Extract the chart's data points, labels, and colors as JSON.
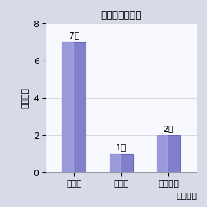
{
  "title_light": "ジャナル",
  "title_bold1": "指",
  "title_light2": "の",
  "title_bold2": "向",
  "title_full": "ジャナル指の向",
  "categories": [
    "着な加",
    "化なし",
    "徐々に少"
  ],
  "values": [
    7,
    1,
    2
  ],
  "labels": [
    "7人",
    "1人",
    "2人"
  ],
  "ylabel": "延べ人数",
  "xlabel_note": "来年の予",
  "ylim": [
    0,
    8
  ],
  "yticks": [
    0,
    2,
    4,
    6,
    8
  ],
  "bar_color": "#8080cc",
  "bar_edge_color": "#6666bb",
  "bg_color": "#d8dae8",
  "plot_bg_color": "#f8f8ff",
  "border_color": "#999999",
  "grid_color": "#cccccc"
}
